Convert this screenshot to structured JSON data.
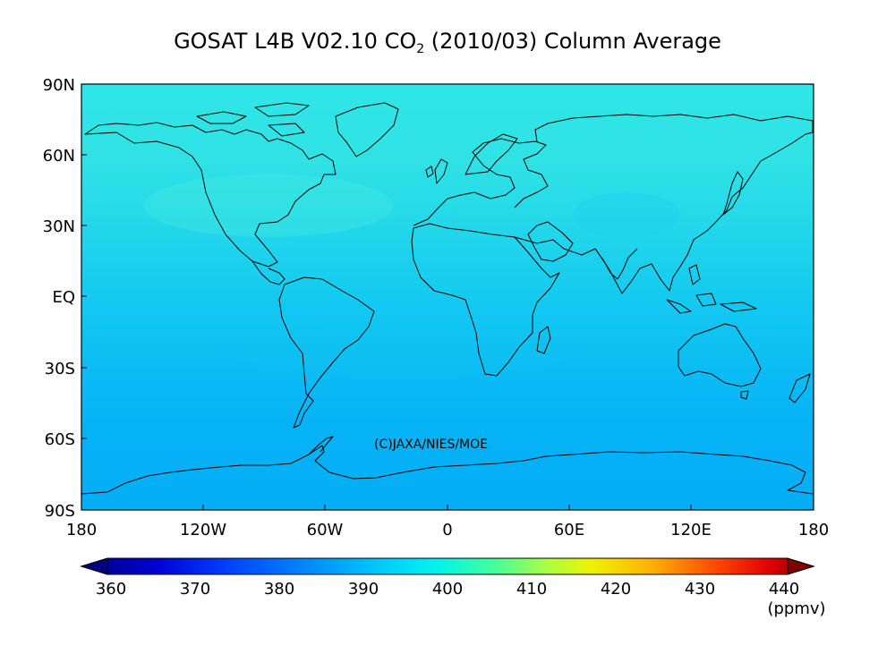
{
  "title": {
    "prefix": "GOSAT L4B V02.10 CO",
    "subscript": "2",
    "suffix": " (2010/03) Column Average"
  },
  "map": {
    "copyright": "(C)JAXA/NIES/MOE",
    "lat_labels": [
      "90N",
      "60N",
      "30N",
      "EQ",
      "30S",
      "60S",
      "90S"
    ],
    "lon_labels": [
      "180",
      "120W",
      "60W",
      "0",
      "60E",
      "120E",
      "180"
    ],
    "concentration_by_latitude_ppmv": [
      {
        "lat": 90,
        "value": 396
      },
      {
        "lat": 60,
        "value": 395
      },
      {
        "lat": 30,
        "value": 393
      },
      {
        "lat": 0,
        "value": 390
      },
      {
        "lat": -30,
        "value": 389
      },
      {
        "lat": -60,
        "value": 388
      },
      {
        "lat": -90,
        "value": 388
      }
    ]
  },
  "colorbar": {
    "ticks": [
      "360",
      "370",
      "380",
      "390",
      "400",
      "410",
      "420",
      "430",
      "440"
    ],
    "unit": "(ppmv)",
    "colors": [
      "#000080",
      "#0000e6",
      "#0060ff",
      "#00b4ff",
      "#00f0f0",
      "#80ff80",
      "#e6ff00",
      "#ffb000",
      "#ff4000",
      "#c00000",
      "#800000"
    ]
  }
}
